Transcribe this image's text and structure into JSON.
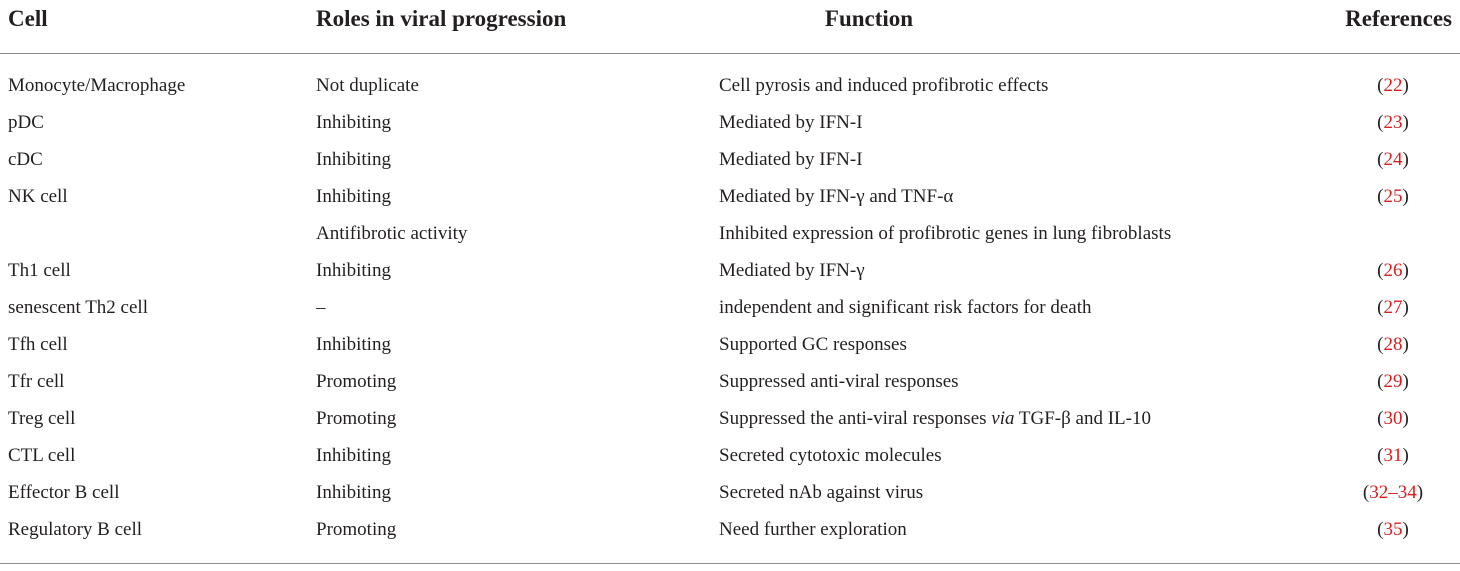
{
  "table": {
    "headers": {
      "cell": "Cell",
      "role": "Roles in viral progression",
      "function": "Function",
      "references": "References"
    },
    "rows": [
      {
        "cell": "Monocyte/Macrophage",
        "role": "Not duplicate",
        "function": "Cell pyrosis and induced profibrotic effects",
        "ref": "22"
      },
      {
        "cell": "pDC",
        "role": "Inhibiting",
        "function": "Mediated by IFN-I",
        "ref": "23"
      },
      {
        "cell": "cDC",
        "role": "Inhibiting",
        "function": "Mediated by IFN-I",
        "ref": "24"
      },
      {
        "cell": "NK cell",
        "role": "Inhibiting",
        "function": "Mediated by IFN-γ and TNF-α",
        "ref": "25"
      },
      {
        "cell": "",
        "role": "Antifibrotic activity",
        "function": "Inhibited expression of profibrotic genes in lung fibroblasts",
        "ref": ""
      },
      {
        "cell": "Th1 cell",
        "role": "Inhibiting",
        "function": "Mediated by IFN-γ",
        "ref": "26"
      },
      {
        "cell": "senescent Th2 cell",
        "role": "–",
        "function": "independent and significant risk factors for death",
        "ref": "27"
      },
      {
        "cell": "Tfh cell",
        "role": "Inhibiting",
        "function": "Supported GC responses",
        "ref": "28"
      },
      {
        "cell": "Tfr cell",
        "role": "Promoting",
        "function": "Suppressed anti-viral responses",
        "ref": "29"
      },
      {
        "cell": "Treg cell",
        "role": "Promoting",
        "function_parts": {
          "before": "Suppressed the anti-viral responses ",
          "italic": "via",
          "after": " TGF-β and IL-10"
        },
        "ref": "30"
      },
      {
        "cell": "CTL cell",
        "role": "Inhibiting",
        "function": "Secreted cytotoxic molecules",
        "ref": "31"
      },
      {
        "cell": "Effector B cell",
        "role": "Inhibiting",
        "function": "Secreted nAb against virus",
        "ref": "32–34"
      },
      {
        "cell": "Regulatory B cell",
        "role": "Promoting",
        "function": "Need further exploration",
        "ref": "35"
      }
    ],
    "paren_open": "(",
    "paren_close": ")",
    "colors": {
      "text": "#231f20",
      "reference_link": "#d42020",
      "rule": "#8c8c8c"
    }
  }
}
